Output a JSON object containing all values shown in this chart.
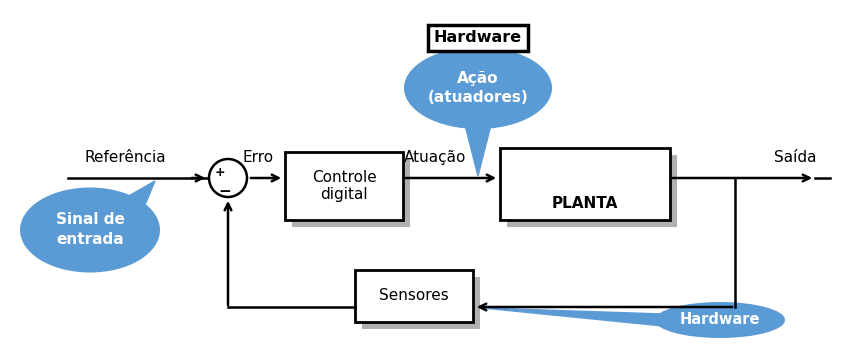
{
  "bg_color": "#ffffff",
  "blue_color": "#5b9bd5",
  "shadow_color": "#b0b0b0",
  "box_edge": "#000000",
  "labels": {
    "referencia": "Referência",
    "erro": "Erro",
    "atuacao": "Atuação",
    "saida": "Saída",
    "controle": [
      "Controle",
      "digital"
    ],
    "planta": "PLANTA",
    "sensores": "Sensores",
    "sinal_entrada": [
      "Sinal de",
      "entrada"
    ],
    "acao_atuadores": [
      "Ação",
      "(atuadores)"
    ],
    "hardware_top": "Hardware",
    "hardware_bottom": "Hardware",
    "plus": "+",
    "minus": "−"
  },
  "figsize": [
    8.63,
    3.59
  ],
  "dpi": 100
}
